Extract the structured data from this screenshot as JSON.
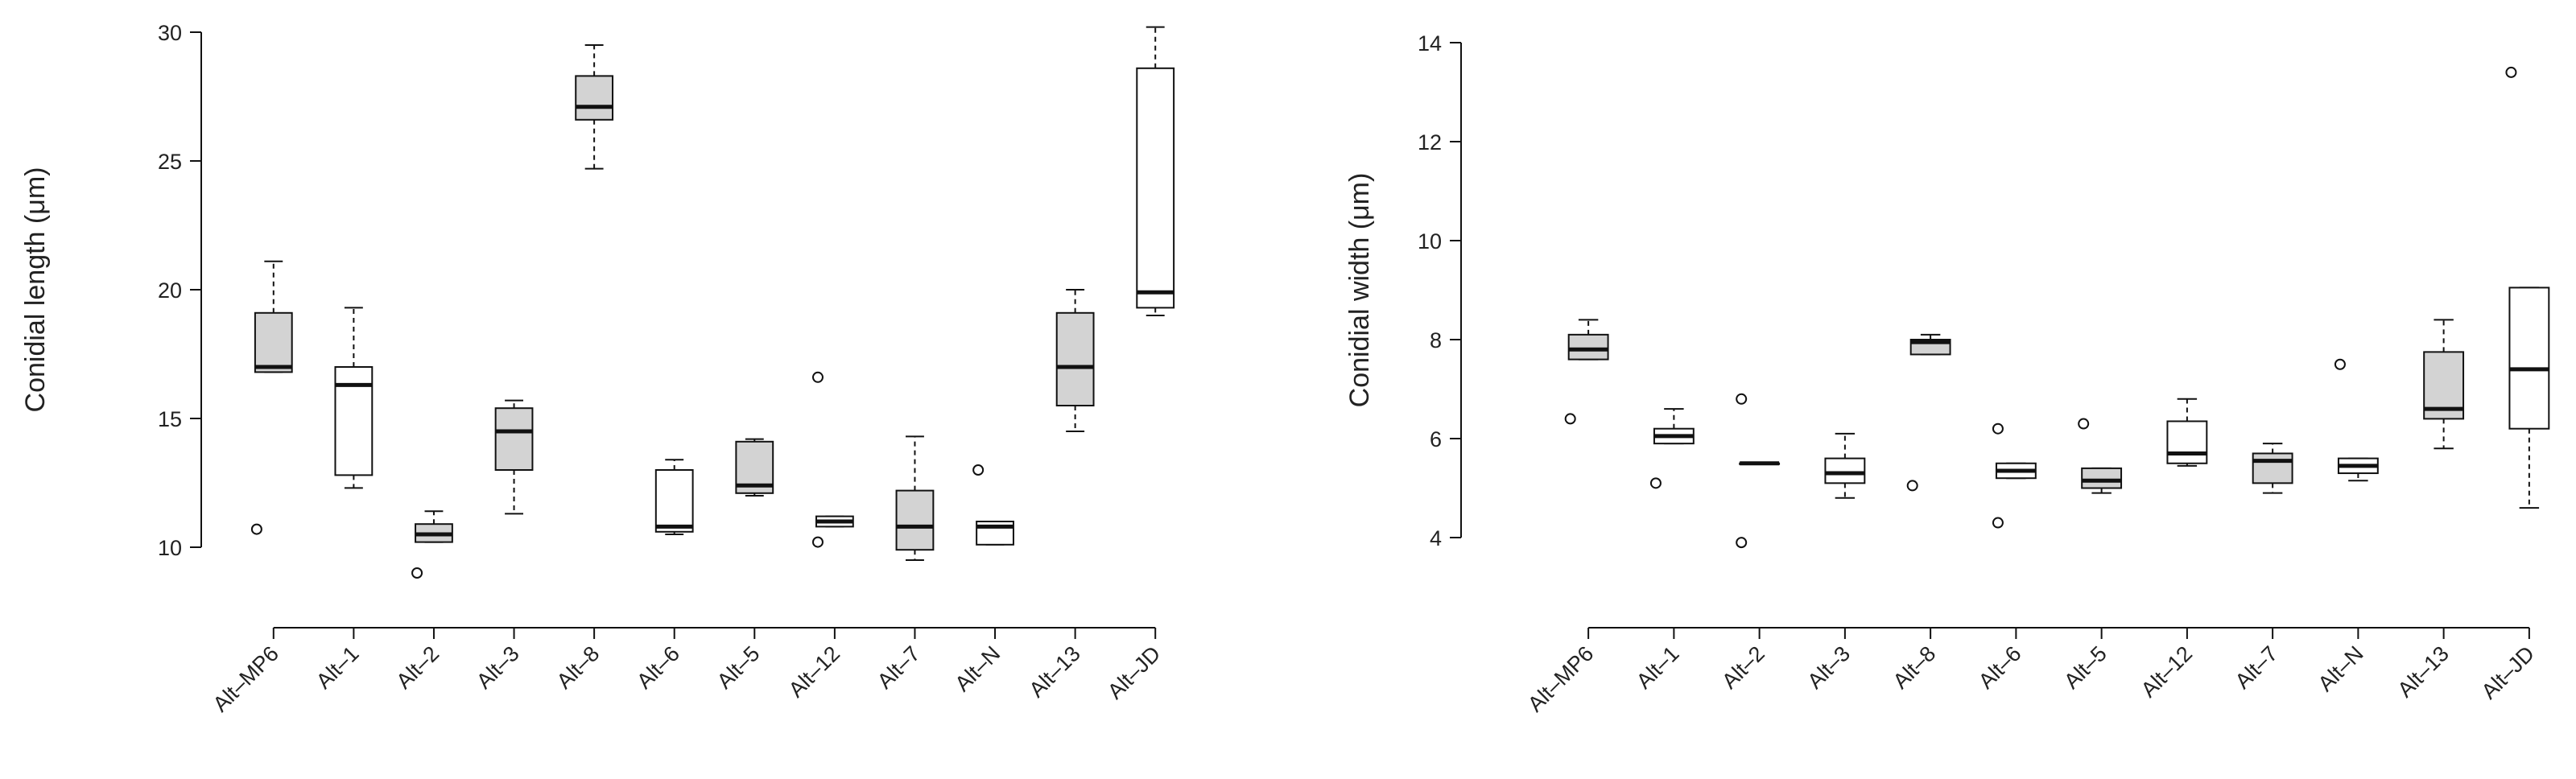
{
  "chart_data": [
    {
      "type": "boxplot",
      "title": "",
      "xlabel": "",
      "ylabel": "Conidial length (μm)",
      "ylim": [
        10,
        30
      ],
      "yticks": [
        10,
        15,
        20,
        25,
        30
      ],
      "grid": false,
      "categories": [
        "Alt–MP6",
        "Alt–1",
        "Alt–2",
        "Alt–3",
        "Alt–8",
        "Alt–6",
        "Alt–5",
        "Alt–12",
        "Alt–7",
        "Alt–N",
        "Alt–13",
        "Alt–JD"
      ],
      "boxes": [
        {
          "name": "Alt–MP6",
          "fill": "gray",
          "whisker_low": 16.8,
          "q1": 16.8,
          "median": 17.0,
          "q3": 19.1,
          "whisker_high": 21.1,
          "outliers": [
            10.7
          ]
        },
        {
          "name": "Alt–1",
          "fill": "white",
          "whisker_low": 12.3,
          "q1": 12.8,
          "median": 16.3,
          "q3": 17.0,
          "whisker_high": 19.3,
          "outliers": []
        },
        {
          "name": "Alt–2",
          "fill": "gray",
          "whisker_low": 10.2,
          "q1": 10.2,
          "median": 10.5,
          "q3": 10.9,
          "whisker_high": 11.4,
          "outliers": [
            9.0
          ]
        },
        {
          "name": "Alt–3",
          "fill": "gray",
          "whisker_low": 11.3,
          "q1": 13.0,
          "median": 14.5,
          "q3": 15.4,
          "whisker_high": 15.7,
          "outliers": []
        },
        {
          "name": "Alt–8",
          "fill": "gray",
          "whisker_low": 24.7,
          "q1": 26.6,
          "median": 27.1,
          "q3": 28.3,
          "whisker_high": 29.5,
          "outliers": []
        },
        {
          "name": "Alt–6",
          "fill": "white",
          "whisker_low": 10.5,
          "q1": 10.6,
          "median": 10.8,
          "q3": 13.0,
          "whisker_high": 13.4,
          "outliers": []
        },
        {
          "name": "Alt–5",
          "fill": "gray",
          "whisker_low": 12.0,
          "q1": 12.1,
          "median": 12.4,
          "q3": 14.1,
          "whisker_high": 14.2,
          "outliers": []
        },
        {
          "name": "Alt–12",
          "fill": "white",
          "whisker_low": 10.8,
          "q1": 10.8,
          "median": 11.0,
          "q3": 11.2,
          "whisker_high": 11.2,
          "outliers": [
            16.6,
            10.2
          ]
        },
        {
          "name": "Alt–7",
          "fill": "gray",
          "whisker_low": 9.5,
          "q1": 9.9,
          "median": 10.8,
          "q3": 12.2,
          "whisker_high": 14.3,
          "outliers": []
        },
        {
          "name": "Alt–N",
          "fill": "white",
          "whisker_low": 10.1,
          "q1": 10.1,
          "median": 10.8,
          "q3": 11.0,
          "whisker_high": 11.0,
          "outliers": [
            13.0
          ]
        },
        {
          "name": "Alt–13",
          "fill": "gray",
          "whisker_low": 14.5,
          "q1": 15.5,
          "median": 17.0,
          "q3": 19.1,
          "whisker_high": 20.0,
          "outliers": []
        },
        {
          "name": "Alt–JD",
          "fill": "white",
          "whisker_low": 19.0,
          "q1": 19.3,
          "median": 19.9,
          "q3": 28.6,
          "whisker_high": 30.2,
          "outliers": []
        }
      ]
    },
    {
      "type": "boxplot",
      "title": "",
      "xlabel": "",
      "ylabel": "Conidial width (μm)",
      "ylim": [
        4,
        14
      ],
      "yticks": [
        4,
        6,
        8,
        10,
        12,
        14
      ],
      "grid": false,
      "categories": [
        "Alt–MP6",
        "Alt–1",
        "Alt–2",
        "Alt–3",
        "Alt–8",
        "Alt–6",
        "Alt–5",
        "Alt–12",
        "Alt–7",
        "Alt–N",
        "Alt–13",
        "Alt–JD"
      ],
      "boxes": [
        {
          "name": "Alt–MP6",
          "fill": "gray",
          "whisker_low": 7.6,
          "q1": 7.6,
          "median": 7.8,
          "q3": 8.1,
          "whisker_high": 8.4,
          "outliers": [
            6.4
          ]
        },
        {
          "name": "Alt–1",
          "fill": "white",
          "whisker_low": 5.9,
          "q1": 5.9,
          "median": 6.05,
          "q3": 6.2,
          "whisker_high": 6.6,
          "outliers": [
            5.1
          ]
        },
        {
          "name": "Alt–2",
          "fill": "white",
          "whisker_low": 5.5,
          "q1": 5.5,
          "median": 5.5,
          "q3": 5.5,
          "whisker_high": 5.5,
          "outliers": [
            6.8,
            3.9
          ]
        },
        {
          "name": "Alt–3",
          "fill": "white",
          "whisker_low": 4.8,
          "q1": 5.1,
          "median": 5.3,
          "q3": 5.6,
          "whisker_high": 6.1,
          "outliers": []
        },
        {
          "name": "Alt–8",
          "fill": "gray",
          "whisker_low": 7.7,
          "q1": 7.7,
          "median": 7.95,
          "q3": 8.0,
          "whisker_high": 8.1,
          "outliers": [
            5.05
          ]
        },
        {
          "name": "Alt–6",
          "fill": "white",
          "whisker_low": 5.2,
          "q1": 5.2,
          "median": 5.35,
          "q3": 5.5,
          "whisker_high": 5.5,
          "outliers": [
            6.2,
            4.3
          ]
        },
        {
          "name": "Alt–5",
          "fill": "gray",
          "whisker_low": 4.9,
          "q1": 5.0,
          "median": 5.15,
          "q3": 5.4,
          "whisker_high": 5.4,
          "outliers": [
            6.3
          ]
        },
        {
          "name": "Alt–12",
          "fill": "white",
          "whisker_low": 5.45,
          "q1": 5.5,
          "median": 5.7,
          "q3": 6.35,
          "whisker_high": 6.8,
          "outliers": []
        },
        {
          "name": "Alt–7",
          "fill": "gray",
          "whisker_low": 4.9,
          "q1": 5.1,
          "median": 5.55,
          "q3": 5.7,
          "whisker_high": 5.9,
          "outliers": []
        },
        {
          "name": "Alt–N",
          "fill": "white",
          "whisker_low": 5.15,
          "q1": 5.3,
          "median": 5.45,
          "q3": 5.6,
          "whisker_high": 5.6,
          "outliers": [
            7.5
          ]
        },
        {
          "name": "Alt–13",
          "fill": "gray",
          "whisker_low": 5.8,
          "q1": 6.4,
          "median": 6.6,
          "q3": 7.75,
          "whisker_high": 8.4,
          "outliers": []
        },
        {
          "name": "Alt–JD",
          "fill": "white",
          "whisker_low": 4.6,
          "q1": 6.2,
          "median": 7.4,
          "q3": 9.05,
          "whisker_high": 9.05,
          "outliers": [
            13.4
          ]
        }
      ]
    }
  ],
  "colors": {
    "gray_fill": "#d3d3d3",
    "white_fill": "#ffffff",
    "stroke": "#111111"
  }
}
